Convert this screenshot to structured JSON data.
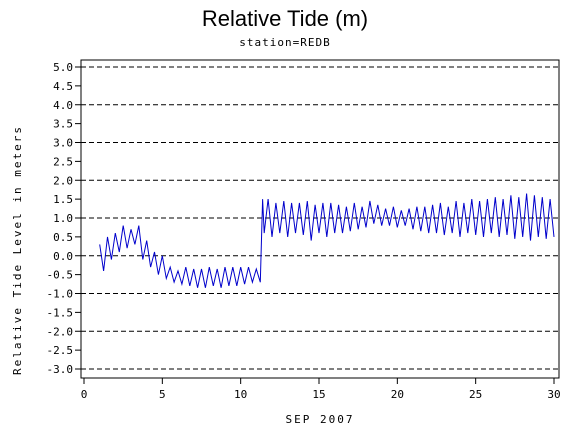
{
  "chart_data": {
    "type": "line",
    "title": "Relative Tide (m)",
    "subtitle": "station=REDB",
    "xlabel": "SEP 2007",
    "ylabel": "Relative Tide Level in meters",
    "xlim": [
      0,
      30
    ],
    "ylim": [
      -3.0,
      5.0
    ],
    "xticks": [
      "0",
      "5",
      "10",
      "15",
      "20",
      "25",
      "30"
    ],
    "yticks": [
      "5.0",
      "4.5",
      "4.0",
      "3.5",
      "3.0",
      "2.5",
      "2.0",
      "1.5",
      "1.0",
      "0.5",
      "0.0",
      "-0.5",
      "-1.0",
      "-1.5",
      "-2.0",
      "-2.5",
      "-3.0"
    ],
    "grid": "dashed horizontal at integer levels",
    "line_color": "#0000cc",
    "series": [
      {
        "x": [
          1.0,
          1.25,
          1.5,
          1.75,
          2.0,
          2.25,
          2.5,
          2.75,
          3.0,
          3.25,
          3.5,
          3.75,
          4.0,
          4.25,
          4.5,
          4.75,
          5.0,
          5.25,
          5.5,
          5.75,
          6.0,
          6.25,
          6.5,
          6.75,
          7.0,
          7.25,
          7.5,
          7.75,
          8.0,
          8.25,
          8.5,
          8.75,
          9.0,
          9.25,
          9.5,
          9.75,
          10.0,
          10.25,
          10.5,
          10.75,
          11.0,
          11.25,
          11.4,
          11.5,
          11.75,
          12.0,
          12.25,
          12.5,
          12.75,
          13.0,
          13.25,
          13.5,
          13.75,
          14.0,
          14.25,
          14.5,
          14.75,
          15.0,
          15.25,
          15.5,
          15.75,
          16.0,
          16.25,
          16.5,
          16.75,
          17.0,
          17.25,
          17.5,
          17.75,
          18.0,
          18.25,
          18.5,
          18.75,
          19.0,
          19.25,
          19.5,
          19.75,
          20.0,
          20.25,
          20.5,
          20.75,
          21.0,
          21.25,
          21.5,
          21.75,
          22.0,
          22.25,
          22.5,
          22.75,
          23.0,
          23.25,
          23.5,
          23.75,
          24.0,
          24.25,
          24.5,
          24.75,
          25.0,
          25.25,
          25.5,
          25.75,
          26.0,
          26.25,
          26.5,
          26.75,
          27.0,
          27.25,
          27.5,
          27.75,
          28.0,
          28.25,
          28.5,
          28.75,
          29.0,
          29.25,
          29.5,
          29.75,
          30.0
        ],
        "y": [
          0.3,
          -0.4,
          0.5,
          -0.1,
          0.6,
          0.1,
          0.8,
          0.2,
          0.7,
          0.3,
          0.8,
          -0.1,
          0.4,
          -0.3,
          0.1,
          -0.5,
          0.0,
          -0.6,
          -0.3,
          -0.7,
          -0.4,
          -0.75,
          -0.3,
          -0.8,
          -0.35,
          -0.85,
          -0.35,
          -0.85,
          -0.3,
          -0.8,
          -0.35,
          -0.85,
          -0.3,
          -0.8,
          -0.3,
          -0.8,
          -0.3,
          -0.75,
          -0.3,
          -0.7,
          -0.35,
          -0.7,
          1.5,
          0.6,
          1.5,
          0.5,
          1.4,
          0.6,
          1.45,
          0.5,
          1.4,
          0.6,
          1.4,
          0.55,
          1.45,
          0.4,
          1.35,
          0.6,
          1.4,
          0.5,
          1.4,
          0.6,
          1.35,
          0.6,
          1.3,
          0.65,
          1.4,
          0.7,
          1.3,
          0.75,
          1.45,
          0.85,
          1.35,
          0.8,
          1.25,
          0.8,
          1.3,
          0.75,
          1.2,
          0.8,
          1.25,
          0.7,
          1.3,
          0.65,
          1.3,
          0.6,
          1.35,
          0.6,
          1.4,
          0.55,
          1.3,
          0.6,
          1.45,
          0.5,
          1.4,
          0.6,
          1.5,
          0.55,
          1.45,
          0.5,
          1.5,
          0.6,
          1.55,
          0.5,
          1.5,
          0.55,
          1.6,
          0.45,
          1.55,
          0.5,
          1.65,
          0.4,
          1.6,
          0.5,
          1.55,
          0.45,
          1.5,
          0.5
        ]
      }
    ]
  }
}
